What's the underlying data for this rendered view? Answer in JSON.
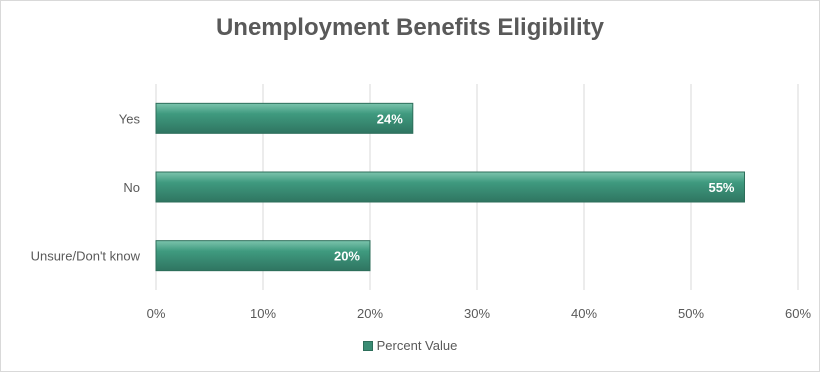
{
  "chart_data": {
    "type": "bar",
    "orientation": "horizontal",
    "title": "Unemployment Benefits Eligibility",
    "categories": [
      "Yes",
      "No",
      "Unsure/Don't know"
    ],
    "series": [
      {
        "name": "Percent Value",
        "values": [
          24,
          55,
          20
        ]
      }
    ],
    "data_labels": [
      "24%",
      "55%",
      "20%"
    ],
    "xlim": [
      0,
      60
    ],
    "x_ticks": [
      "0%",
      "10%",
      "20%",
      "30%",
      "40%",
      "50%",
      "60%"
    ],
    "grid": true,
    "legend_position": "bottom",
    "colors": {
      "bar": "#3a8c74",
      "bar_edge": "#2d6e5a",
      "grid": "#d9d9d9",
      "text": "#595959"
    }
  }
}
